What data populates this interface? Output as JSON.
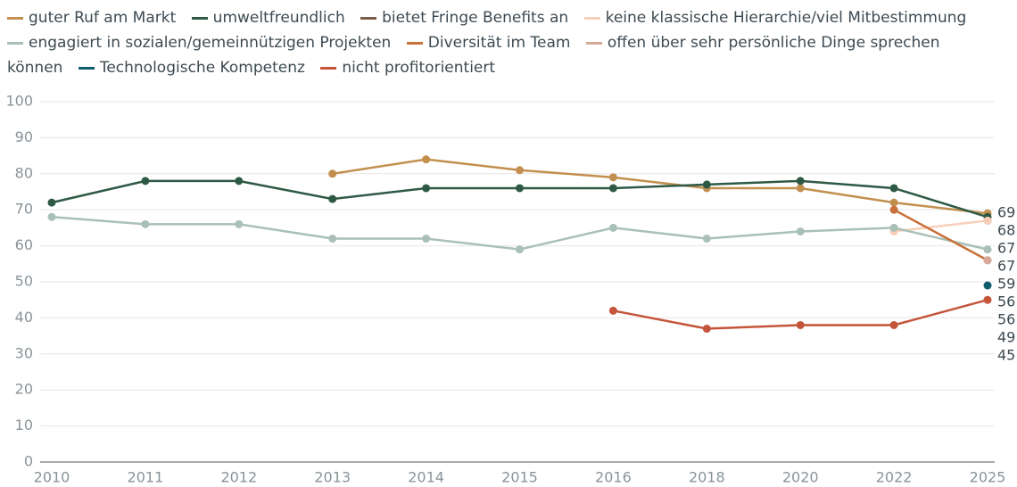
{
  "chart_data": {
    "type": "line",
    "categories": [
      "2010",
      "2011",
      "2012",
      "2013",
      "2014",
      "2015",
      "2016",
      "2018",
      "2020",
      "2022",
      "2025"
    ],
    "series": [
      {
        "name": "guter Ruf am Markt",
        "color": "#c28f4e",
        "values": [
          null,
          null,
          null,
          80,
          84,
          81,
          79,
          76,
          76,
          72,
          69
        ]
      },
      {
        "name": "umweltfreundlich",
        "color": "#2e5a45",
        "values": [
          72,
          78,
          78,
          73,
          76,
          76,
          76,
          77,
          78,
          76,
          68
        ]
      },
      {
        "name": "bietet Fringe Benefits an",
        "color": "#7a5c48",
        "values": [
          null,
          null,
          null,
          null,
          null,
          null,
          null,
          null,
          null,
          null,
          67
        ]
      },
      {
        "name": "keine klassische Hierarchie/viel Mitbestimmung",
        "color": "#f7cfb8",
        "values": [
          null,
          null,
          null,
          null,
          null,
          null,
          null,
          null,
          null,
          64,
          67
        ]
      },
      {
        "name": "engagiert in sozialen/gemeinnützigen Projekten",
        "color": "#a9c0b7",
        "values": [
          68,
          66,
          66,
          62,
          62,
          59,
          65,
          62,
          64,
          65,
          59
        ]
      },
      {
        "name": "Diversität im Team",
        "color": "#c8703a",
        "values": [
          null,
          null,
          null,
          null,
          null,
          null,
          null,
          null,
          null,
          70,
          56
        ]
      },
      {
        "name": "offen über sehr persönliche Dinge sprechen können",
        "color": "#d6a898",
        "values": [
          null,
          null,
          null,
          null,
          null,
          null,
          null,
          null,
          null,
          null,
          56
        ]
      },
      {
        "name": "Technologische Kompetenz",
        "color": "#0f5c6b",
        "values": [
          null,
          null,
          null,
          null,
          null,
          null,
          null,
          null,
          null,
          null,
          49
        ]
      },
      {
        "name": "nicht profitorientiert",
        "color": "#c4553a",
        "values": [
          null,
          null,
          null,
          null,
          null,
          null,
          42,
          37,
          38,
          38,
          45
        ]
      }
    ],
    "ylim": [
      0,
      100
    ],
    "yticks": [
      0,
      10,
      20,
      30,
      40,
      50,
      60,
      70,
      80,
      90,
      100
    ],
    "grid": true
  }
}
